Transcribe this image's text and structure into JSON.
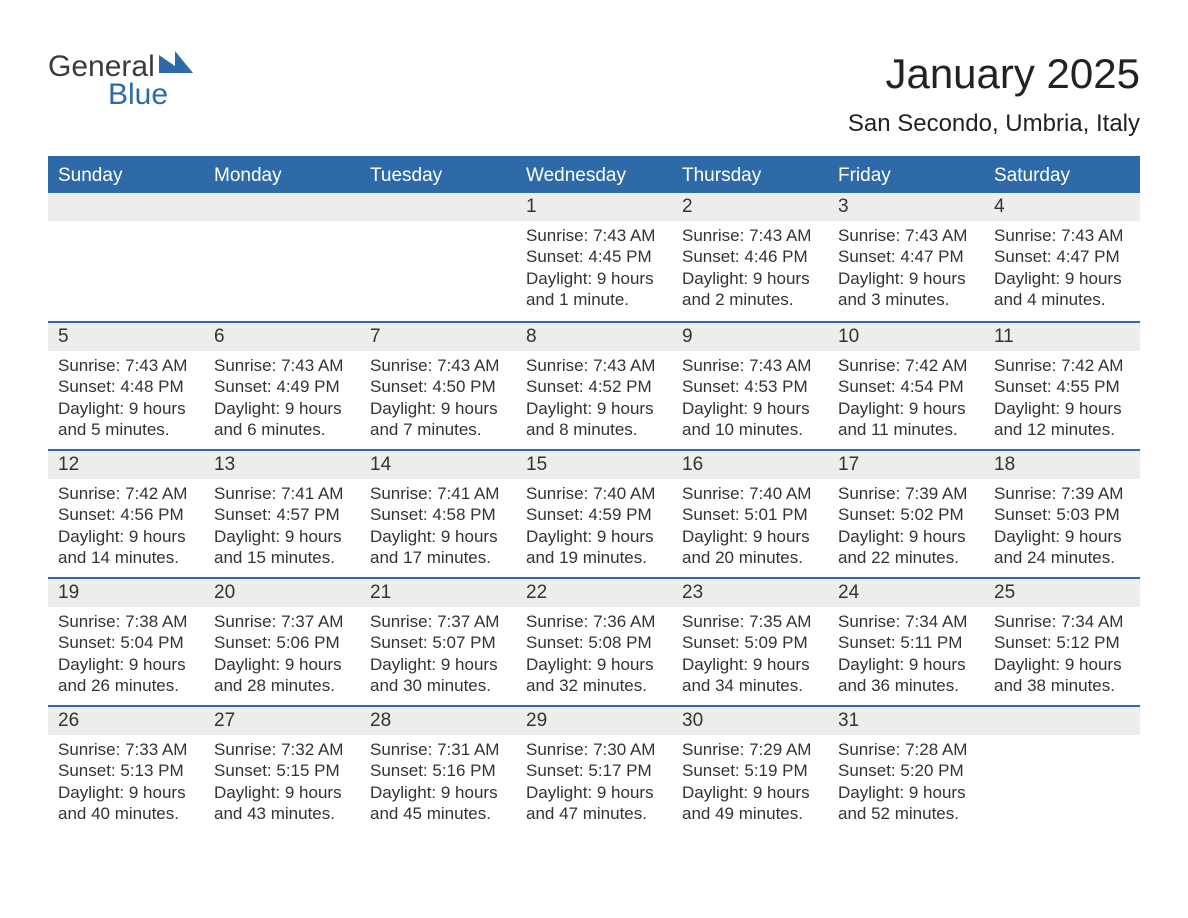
{
  "logo": {
    "word1": "General",
    "word2": "Blue",
    "word1_color": "#3b3b3b",
    "word2_color": "#2f6aa8",
    "triangle_color": "#2f6aa8"
  },
  "title": "January 2025",
  "subtitle": "San Secondo, Umbria, Italy",
  "colors": {
    "header_bg": "#2f6aa8",
    "header_text": "#ffffff",
    "daynum_bg": "#ededed",
    "row_divider": "#2f6aa8",
    "body_text": "#333333",
    "page_bg": "#ffffff"
  },
  "fonts": {
    "title_size_pt": 32,
    "subtitle_size_pt": 18,
    "header_size_pt": 14,
    "daynum_size_pt": 14,
    "body_size_pt": 13
  },
  "day_headers": [
    "Sunday",
    "Monday",
    "Tuesday",
    "Wednesday",
    "Thursday",
    "Friday",
    "Saturday"
  ],
  "weeks": [
    [
      null,
      null,
      null,
      {
        "n": "1",
        "sr": "Sunrise: 7:43 AM",
        "ss": "Sunset: 4:45 PM",
        "d1": "Daylight: 9 hours",
        "d2": "and 1 minute."
      },
      {
        "n": "2",
        "sr": "Sunrise: 7:43 AM",
        "ss": "Sunset: 4:46 PM",
        "d1": "Daylight: 9 hours",
        "d2": "and 2 minutes."
      },
      {
        "n": "3",
        "sr": "Sunrise: 7:43 AM",
        "ss": "Sunset: 4:47 PM",
        "d1": "Daylight: 9 hours",
        "d2": "and 3 minutes."
      },
      {
        "n": "4",
        "sr": "Sunrise: 7:43 AM",
        "ss": "Sunset: 4:47 PM",
        "d1": "Daylight: 9 hours",
        "d2": "and 4 minutes."
      }
    ],
    [
      {
        "n": "5",
        "sr": "Sunrise: 7:43 AM",
        "ss": "Sunset: 4:48 PM",
        "d1": "Daylight: 9 hours",
        "d2": "and 5 minutes."
      },
      {
        "n": "6",
        "sr": "Sunrise: 7:43 AM",
        "ss": "Sunset: 4:49 PM",
        "d1": "Daylight: 9 hours",
        "d2": "and 6 minutes."
      },
      {
        "n": "7",
        "sr": "Sunrise: 7:43 AM",
        "ss": "Sunset: 4:50 PM",
        "d1": "Daylight: 9 hours",
        "d2": "and 7 minutes."
      },
      {
        "n": "8",
        "sr": "Sunrise: 7:43 AM",
        "ss": "Sunset: 4:52 PM",
        "d1": "Daylight: 9 hours",
        "d2": "and 8 minutes."
      },
      {
        "n": "9",
        "sr": "Sunrise: 7:43 AM",
        "ss": "Sunset: 4:53 PM",
        "d1": "Daylight: 9 hours",
        "d2": "and 10 minutes."
      },
      {
        "n": "10",
        "sr": "Sunrise: 7:42 AM",
        "ss": "Sunset: 4:54 PM",
        "d1": "Daylight: 9 hours",
        "d2": "and 11 minutes."
      },
      {
        "n": "11",
        "sr": "Sunrise: 7:42 AM",
        "ss": "Sunset: 4:55 PM",
        "d1": "Daylight: 9 hours",
        "d2": "and 12 minutes."
      }
    ],
    [
      {
        "n": "12",
        "sr": "Sunrise: 7:42 AM",
        "ss": "Sunset: 4:56 PM",
        "d1": "Daylight: 9 hours",
        "d2": "and 14 minutes."
      },
      {
        "n": "13",
        "sr": "Sunrise: 7:41 AM",
        "ss": "Sunset: 4:57 PM",
        "d1": "Daylight: 9 hours",
        "d2": "and 15 minutes."
      },
      {
        "n": "14",
        "sr": "Sunrise: 7:41 AM",
        "ss": "Sunset: 4:58 PM",
        "d1": "Daylight: 9 hours",
        "d2": "and 17 minutes."
      },
      {
        "n": "15",
        "sr": "Sunrise: 7:40 AM",
        "ss": "Sunset: 4:59 PM",
        "d1": "Daylight: 9 hours",
        "d2": "and 19 minutes."
      },
      {
        "n": "16",
        "sr": "Sunrise: 7:40 AM",
        "ss": "Sunset: 5:01 PM",
        "d1": "Daylight: 9 hours",
        "d2": "and 20 minutes."
      },
      {
        "n": "17",
        "sr": "Sunrise: 7:39 AM",
        "ss": "Sunset: 5:02 PM",
        "d1": "Daylight: 9 hours",
        "d2": "and 22 minutes."
      },
      {
        "n": "18",
        "sr": "Sunrise: 7:39 AM",
        "ss": "Sunset: 5:03 PM",
        "d1": "Daylight: 9 hours",
        "d2": "and 24 minutes."
      }
    ],
    [
      {
        "n": "19",
        "sr": "Sunrise: 7:38 AM",
        "ss": "Sunset: 5:04 PM",
        "d1": "Daylight: 9 hours",
        "d2": "and 26 minutes."
      },
      {
        "n": "20",
        "sr": "Sunrise: 7:37 AM",
        "ss": "Sunset: 5:06 PM",
        "d1": "Daylight: 9 hours",
        "d2": "and 28 minutes."
      },
      {
        "n": "21",
        "sr": "Sunrise: 7:37 AM",
        "ss": "Sunset: 5:07 PM",
        "d1": "Daylight: 9 hours",
        "d2": "and 30 minutes."
      },
      {
        "n": "22",
        "sr": "Sunrise: 7:36 AM",
        "ss": "Sunset: 5:08 PM",
        "d1": "Daylight: 9 hours",
        "d2": "and 32 minutes."
      },
      {
        "n": "23",
        "sr": "Sunrise: 7:35 AM",
        "ss": "Sunset: 5:09 PM",
        "d1": "Daylight: 9 hours",
        "d2": "and 34 minutes."
      },
      {
        "n": "24",
        "sr": "Sunrise: 7:34 AM",
        "ss": "Sunset: 5:11 PM",
        "d1": "Daylight: 9 hours",
        "d2": "and 36 minutes."
      },
      {
        "n": "25",
        "sr": "Sunrise: 7:34 AM",
        "ss": "Sunset: 5:12 PM",
        "d1": "Daylight: 9 hours",
        "d2": "and 38 minutes."
      }
    ],
    [
      {
        "n": "26",
        "sr": "Sunrise: 7:33 AM",
        "ss": "Sunset: 5:13 PM",
        "d1": "Daylight: 9 hours",
        "d2": "and 40 minutes."
      },
      {
        "n": "27",
        "sr": "Sunrise: 7:32 AM",
        "ss": "Sunset: 5:15 PM",
        "d1": "Daylight: 9 hours",
        "d2": "and 43 minutes."
      },
      {
        "n": "28",
        "sr": "Sunrise: 7:31 AM",
        "ss": "Sunset: 5:16 PM",
        "d1": "Daylight: 9 hours",
        "d2": "and 45 minutes."
      },
      {
        "n": "29",
        "sr": "Sunrise: 7:30 AM",
        "ss": "Sunset: 5:17 PM",
        "d1": "Daylight: 9 hours",
        "d2": "and 47 minutes."
      },
      {
        "n": "30",
        "sr": "Sunrise: 7:29 AM",
        "ss": "Sunset: 5:19 PM",
        "d1": "Daylight: 9 hours",
        "d2": "and 49 minutes."
      },
      {
        "n": "31",
        "sr": "Sunrise: 7:28 AM",
        "ss": "Sunset: 5:20 PM",
        "d1": "Daylight: 9 hours",
        "d2": "and 52 minutes."
      },
      null
    ]
  ]
}
